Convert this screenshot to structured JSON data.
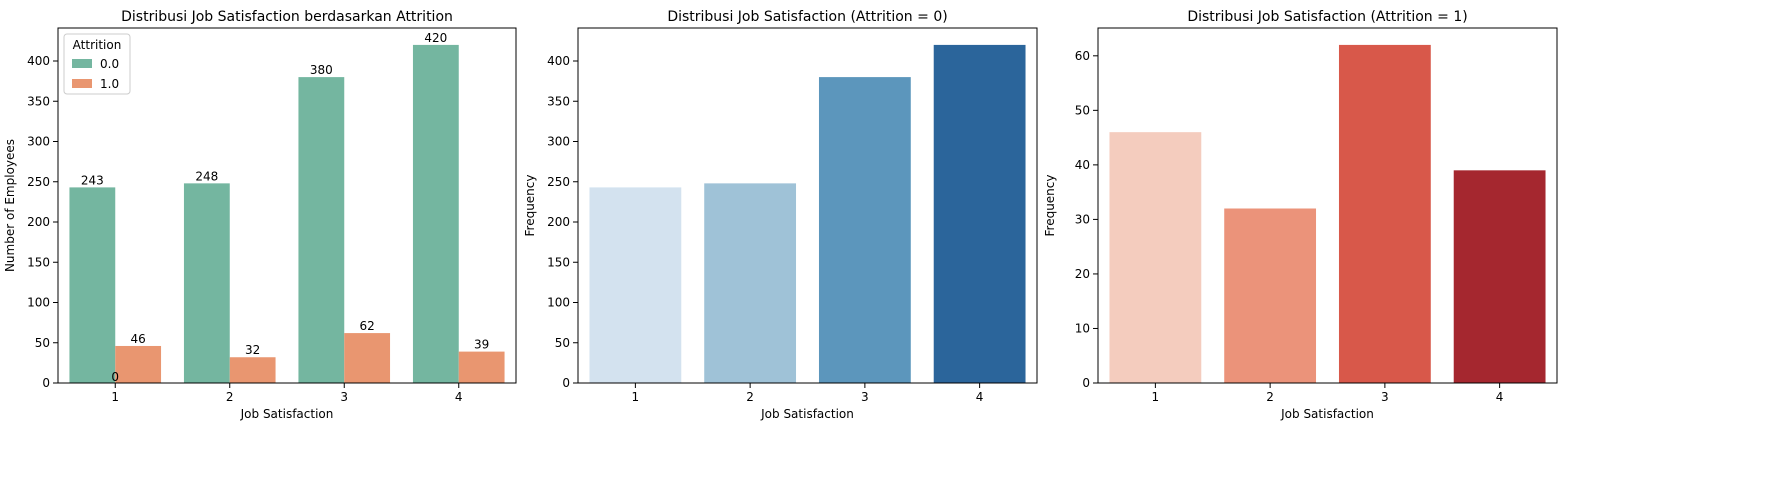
{
  "chart_data": [
    {
      "type": "bar",
      "title": "Distribusi Job Satisfaction berdasarkan Attrition",
      "xlabel": "Job Satisfaction",
      "ylabel": "Number of Employees",
      "categories": [
        "1",
        "2",
        "3",
        "4"
      ],
      "ylim": [
        0,
        441
      ],
      "yticks": [
        0,
        50,
        100,
        150,
        200,
        250,
        300,
        350,
        400
      ],
      "legend": {
        "title": "Attrition",
        "position": "top-left"
      },
      "series": [
        {
          "name": "0.0",
          "values": [
            243,
            248,
            380,
            420
          ],
          "color": "#74b6a0"
        },
        {
          "name": "1.0",
          "values": [
            46,
            32,
            62,
            39
          ],
          "color": "#e99670"
        }
      ],
      "data_labels": [
        "243",
        "248",
        "380",
        "420",
        "46",
        "32",
        "62",
        "39"
      ],
      "extra_label": "0"
    },
    {
      "type": "bar",
      "title": "Distribusi Job Satisfaction (Attrition = 0)",
      "xlabel": "Job Satisfaction",
      "ylabel": "Frequency",
      "categories": [
        "1",
        "2",
        "3",
        "4"
      ],
      "values": [
        243,
        248,
        380,
        420
      ],
      "colors": [
        "#d3e2ef",
        "#9fc2d7",
        "#5c96bc",
        "#2b659b"
      ],
      "ylim": [
        0,
        441
      ],
      "yticks": [
        0,
        50,
        100,
        150,
        200,
        250,
        300,
        350,
        400
      ]
    },
    {
      "type": "bar",
      "title": "Distribusi Job Satisfaction (Attrition = 1)",
      "xlabel": "Job Satisfaction",
      "ylabel": "Frequency",
      "categories": [
        "1",
        "2",
        "3",
        "4"
      ],
      "values": [
        46,
        32,
        62,
        39
      ],
      "colors": [
        "#f4ccbe",
        "#eb937a",
        "#d8584a",
        "#a5272f"
      ],
      "ylim": [
        0,
        65.1
      ],
      "yticks": [
        0,
        10,
        20,
        30,
        40,
        50,
        60
      ]
    }
  ]
}
